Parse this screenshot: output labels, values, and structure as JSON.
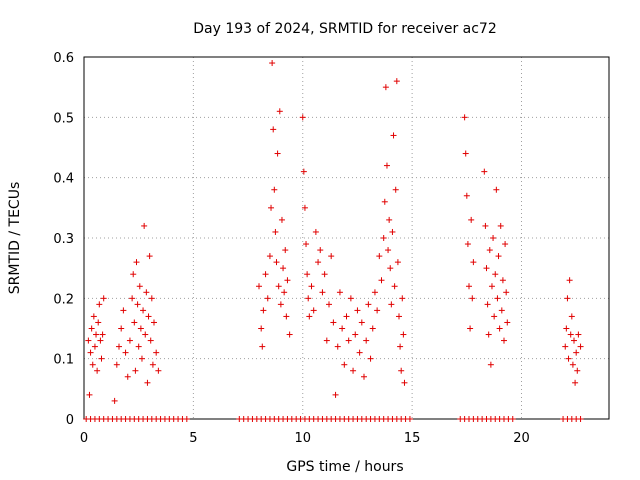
{
  "chart_data": {
    "type": "scatter",
    "title": "Day 193 of 2024, SRMTID for receiver ac72",
    "xlabel": "GPS time / hours",
    "ylabel": "SRMTID / TECUs",
    "xlim": [
      0,
      24
    ],
    "ylim": [
      0,
      0.6
    ],
    "xticks": [
      0,
      5,
      10,
      15,
      20
    ],
    "xtick_labels": [
      "0",
      "5",
      "10",
      "15",
      "20"
    ],
    "yticks": [
      0,
      0.1,
      0.2,
      0.3,
      0.4,
      0.5,
      0.6
    ],
    "ytick_labels": [
      "0",
      "0.1",
      "0.2",
      "0.3",
      "0.4",
      "0.5",
      "0.6"
    ],
    "grid": true,
    "marker": "plus",
    "series": [
      {
        "name": "SRMTID",
        "color": "#e00000",
        "points": [
          [
            0.2,
            0.13
          ],
          [
            0.25,
            0.04
          ],
          [
            0.3,
            0.11
          ],
          [
            0.35,
            0.15
          ],
          [
            0.4,
            0.09
          ],
          [
            0.45,
            0.17
          ],
          [
            0.5,
            0.12
          ],
          [
            0.55,
            0.14
          ],
          [
            0.6,
            0.08
          ],
          [
            0.65,
            0.16
          ],
          [
            0.7,
            0.19
          ],
          [
            0.75,
            0.13
          ],
          [
            0.8,
            0.1
          ],
          [
            0.85,
            0.14
          ],
          [
            0.9,
            0.2
          ],
          [
            1.4,
            0.03
          ],
          [
            1.5,
            0.09
          ],
          [
            1.6,
            0.12
          ],
          [
            1.7,
            0.15
          ],
          [
            1.8,
            0.18
          ],
          [
            1.9,
            0.11
          ],
          [
            2.0,
            0.07
          ],
          [
            2.1,
            0.13
          ],
          [
            2.2,
            0.2
          ],
          [
            2.25,
            0.24
          ],
          [
            2.3,
            0.16
          ],
          [
            2.35,
            0.08
          ],
          [
            2.4,
            0.26
          ],
          [
            2.45,
            0.19
          ],
          [
            2.5,
            0.12
          ],
          [
            2.55,
            0.22
          ],
          [
            2.6,
            0.15
          ],
          [
            2.65,
            0.1
          ],
          [
            2.7,
            0.18
          ],
          [
            2.75,
            0.32
          ],
          [
            2.8,
            0.14
          ],
          [
            2.85,
            0.21
          ],
          [
            2.9,
            0.06
          ],
          [
            2.95,
            0.17
          ],
          [
            3.0,
            0.27
          ],
          [
            3.05,
            0.13
          ],
          [
            3.1,
            0.2
          ],
          [
            3.15,
            0.09
          ],
          [
            3.2,
            0.16
          ],
          [
            3.3,
            0.11
          ],
          [
            3.4,
            0.08
          ],
          [
            8.0,
            0.22
          ],
          [
            8.1,
            0.15
          ],
          [
            8.15,
            0.12
          ],
          [
            8.2,
            0.18
          ],
          [
            8.3,
            0.24
          ],
          [
            8.4,
            0.2
          ],
          [
            8.5,
            0.27
          ],
          [
            8.55,
            0.35
          ],
          [
            8.6,
            0.59
          ],
          [
            8.65,
            0.48
          ],
          [
            8.7,
            0.38
          ],
          [
            8.75,
            0.31
          ],
          [
            8.8,
            0.26
          ],
          [
            8.85,
            0.44
          ],
          [
            8.9,
            0.22
          ],
          [
            8.95,
            0.51
          ],
          [
            9.0,
            0.19
          ],
          [
            9.05,
            0.33
          ],
          [
            9.1,
            0.25
          ],
          [
            9.15,
            0.21
          ],
          [
            9.2,
            0.28
          ],
          [
            9.25,
            0.17
          ],
          [
            9.3,
            0.23
          ],
          [
            9.4,
            0.14
          ],
          [
            10.0,
            0.5
          ],
          [
            10.05,
            0.41
          ],
          [
            10.1,
            0.35
          ],
          [
            10.15,
            0.29
          ],
          [
            10.2,
            0.24
          ],
          [
            10.25,
            0.2
          ],
          [
            10.3,
            0.17
          ],
          [
            10.4,
            0.22
          ],
          [
            10.5,
            0.18
          ],
          [
            10.6,
            0.31
          ],
          [
            10.7,
            0.26
          ],
          [
            10.8,
            0.28
          ],
          [
            10.9,
            0.21
          ],
          [
            11.0,
            0.24
          ],
          [
            11.1,
            0.13
          ],
          [
            11.2,
            0.19
          ],
          [
            11.3,
            0.27
          ],
          [
            11.4,
            0.16
          ],
          [
            11.5,
            0.04
          ],
          [
            11.6,
            0.12
          ],
          [
            11.7,
            0.21
          ],
          [
            11.8,
            0.15
          ],
          [
            11.9,
            0.09
          ],
          [
            12.0,
            0.17
          ],
          [
            12.1,
            0.13
          ],
          [
            12.2,
            0.2
          ],
          [
            12.3,
            0.08
          ],
          [
            12.4,
            0.14
          ],
          [
            12.5,
            0.18
          ],
          [
            12.6,
            0.11
          ],
          [
            12.7,
            0.16
          ],
          [
            12.8,
            0.07
          ],
          [
            12.9,
            0.13
          ],
          [
            13.0,
            0.19
          ],
          [
            13.1,
            0.1
          ],
          [
            13.2,
            0.15
          ],
          [
            13.3,
            0.21
          ],
          [
            13.4,
            0.18
          ],
          [
            13.5,
            0.27
          ],
          [
            13.6,
            0.23
          ],
          [
            13.7,
            0.3
          ],
          [
            13.75,
            0.36
          ],
          [
            13.8,
            0.55
          ],
          [
            13.85,
            0.42
          ],
          [
            13.9,
            0.28
          ],
          [
            13.95,
            0.33
          ],
          [
            14.0,
            0.25
          ],
          [
            14.05,
            0.19
          ],
          [
            14.1,
            0.31
          ],
          [
            14.15,
            0.47
          ],
          [
            14.2,
            0.22
          ],
          [
            14.25,
            0.38
          ],
          [
            14.3,
            0.56
          ],
          [
            14.35,
            0.26
          ],
          [
            14.4,
            0.17
          ],
          [
            14.45,
            0.12
          ],
          [
            14.5,
            0.08
          ],
          [
            14.55,
            0.2
          ],
          [
            14.6,
            0.14
          ],
          [
            14.65,
            0.06
          ],
          [
            17.4,
            0.5
          ],
          [
            17.45,
            0.44
          ],
          [
            17.5,
            0.37
          ],
          [
            17.55,
            0.29
          ],
          [
            17.6,
            0.22
          ],
          [
            17.65,
            0.15
          ],
          [
            17.7,
            0.33
          ],
          [
            17.75,
            0.2
          ],
          [
            17.8,
            0.26
          ],
          [
            18.3,
            0.41
          ],
          [
            18.35,
            0.32
          ],
          [
            18.4,
            0.25
          ],
          [
            18.45,
            0.19
          ],
          [
            18.5,
            0.14
          ],
          [
            18.55,
            0.28
          ],
          [
            18.6,
            0.09
          ],
          [
            18.65,
            0.22
          ],
          [
            18.7,
            0.3
          ],
          [
            18.75,
            0.17
          ],
          [
            18.8,
            0.24
          ],
          [
            18.85,
            0.38
          ],
          [
            18.9,
            0.2
          ],
          [
            18.95,
            0.27
          ],
          [
            19.0,
            0.15
          ],
          [
            19.05,
            0.32
          ],
          [
            19.1,
            0.18
          ],
          [
            19.15,
            0.23
          ],
          [
            19.2,
            0.13
          ],
          [
            19.25,
            0.29
          ],
          [
            19.3,
            0.21
          ],
          [
            19.35,
            0.16
          ],
          [
            22.0,
            0.12
          ],
          [
            22.05,
            0.15
          ],
          [
            22.1,
            0.2
          ],
          [
            22.15,
            0.1
          ],
          [
            22.2,
            0.23
          ],
          [
            22.25,
            0.14
          ],
          [
            22.3,
            0.17
          ],
          [
            22.35,
            0.09
          ],
          [
            22.4,
            0.13
          ],
          [
            22.45,
            0.06
          ],
          [
            22.5,
            0.11
          ],
          [
            22.55,
            0.08
          ],
          [
            22.6,
            0.14
          ],
          [
            22.7,
            0.12
          ],
          [
            0.1,
            0
          ],
          [
            0.3,
            0
          ],
          [
            0.5,
            0
          ],
          [
            0.7,
            0
          ],
          [
            0.9,
            0
          ],
          [
            1.1,
            0
          ],
          [
            1.3,
            0
          ],
          [
            1.5,
            0
          ],
          [
            1.7,
            0
          ],
          [
            1.9,
            0
          ],
          [
            2.1,
            0
          ],
          [
            2.3,
            0
          ],
          [
            2.5,
            0
          ],
          [
            2.7,
            0
          ],
          [
            2.9,
            0
          ],
          [
            3.1,
            0
          ],
          [
            3.3,
            0
          ],
          [
            3.5,
            0
          ],
          [
            3.7,
            0
          ],
          [
            3.9,
            0
          ],
          [
            4.1,
            0
          ],
          [
            4.3,
            0
          ],
          [
            4.5,
            0
          ],
          [
            4.7,
            0
          ],
          [
            7.1,
            0
          ],
          [
            7.3,
            0
          ],
          [
            7.5,
            0
          ],
          [
            7.7,
            0
          ],
          [
            7.9,
            0
          ],
          [
            8.1,
            0
          ],
          [
            8.3,
            0
          ],
          [
            8.5,
            0
          ],
          [
            8.7,
            0
          ],
          [
            8.9,
            0
          ],
          [
            9.1,
            0
          ],
          [
            9.3,
            0
          ],
          [
            9.5,
            0
          ],
          [
            9.7,
            0
          ],
          [
            9.9,
            0
          ],
          [
            10.1,
            0
          ],
          [
            10.3,
            0
          ],
          [
            10.5,
            0
          ],
          [
            10.7,
            0
          ],
          [
            10.9,
            0
          ],
          [
            11.1,
            0
          ],
          [
            11.3,
            0
          ],
          [
            11.5,
            0
          ],
          [
            11.7,
            0
          ],
          [
            11.9,
            0
          ],
          [
            12.1,
            0
          ],
          [
            12.3,
            0
          ],
          [
            12.5,
            0
          ],
          [
            12.7,
            0
          ],
          [
            12.9,
            0
          ],
          [
            13.1,
            0
          ],
          [
            13.3,
            0
          ],
          [
            13.5,
            0
          ],
          [
            13.7,
            0
          ],
          [
            13.9,
            0
          ],
          [
            14.1,
            0
          ],
          [
            14.3,
            0
          ],
          [
            14.5,
            0
          ],
          [
            14.7,
            0
          ],
          [
            14.9,
            0
          ],
          [
            17.2,
            0
          ],
          [
            17.4,
            0
          ],
          [
            17.6,
            0
          ],
          [
            17.8,
            0
          ],
          [
            18.0,
            0
          ],
          [
            18.2,
            0
          ],
          [
            18.4,
            0
          ],
          [
            18.6,
            0
          ],
          [
            18.8,
            0
          ],
          [
            19.0,
            0
          ],
          [
            19.2,
            0
          ],
          [
            19.4,
            0
          ],
          [
            19.6,
            0
          ],
          [
            21.9,
            0
          ],
          [
            22.1,
            0
          ],
          [
            22.3,
            0
          ],
          [
            22.5,
            0
          ],
          [
            22.7,
            0
          ]
        ]
      }
    ]
  }
}
